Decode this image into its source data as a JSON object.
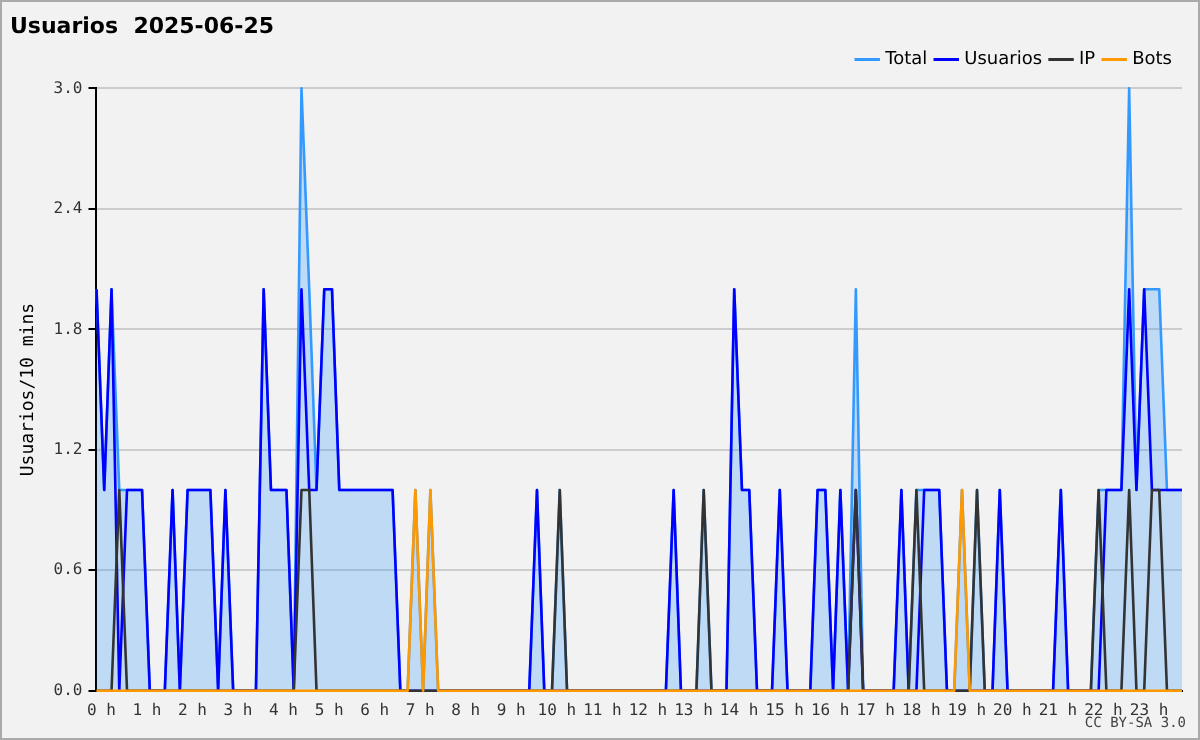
{
  "chart_data": {
    "type": "line",
    "title": "Usuarios  2025-06-25",
    "ylabel": "Usuarios/10 mins",
    "annotations": [
      "CC BY-SA 3.0"
    ],
    "xlim": [
      0,
      23.83
    ],
    "xticks": [
      {
        "value": 0,
        "label": "0 h"
      },
      {
        "value": 1,
        "label": "1 h"
      },
      {
        "value": 2,
        "label": "2 h"
      },
      {
        "value": 3,
        "label": "3 h"
      },
      {
        "value": 4,
        "label": "4 h"
      },
      {
        "value": 5,
        "label": "5 h"
      },
      {
        "value": 6,
        "label": "6 h"
      },
      {
        "value": 7,
        "label": "7 h"
      },
      {
        "value": 8,
        "label": "8 h"
      },
      {
        "value": 9,
        "label": "9 h"
      },
      {
        "value": 10,
        "label": "10 h"
      },
      {
        "value": 11,
        "label": "11 h"
      },
      {
        "value": 12,
        "label": "12 h"
      },
      {
        "value": 13,
        "label": "13 h"
      },
      {
        "value": 14,
        "label": "14 h"
      },
      {
        "value": 15,
        "label": "15 h"
      },
      {
        "value": 16,
        "label": "16 h"
      },
      {
        "value": 17,
        "label": "17 h"
      },
      {
        "value": 18,
        "label": "18 h"
      },
      {
        "value": 19,
        "label": "19 h"
      },
      {
        "value": 20,
        "label": "20 h"
      },
      {
        "value": 21,
        "label": "21 h"
      },
      {
        "value": 22,
        "label": "22 h"
      },
      {
        "value": 23,
        "label": "23 h"
      }
    ],
    "ylim": [
      0,
      3
    ],
    "yticks": [
      {
        "value": 0,
        "label": "0.0"
      },
      0.6,
      1.2,
      1.8,
      2.4,
      {
        "value": 3,
        "label": "3.0"
      }
    ],
    "grid": "y",
    "legend": "top right",
    "marker": "none",
    "line_style": "solid",
    "series": [
      {
        "name": "Total",
        "type": "area",
        "color": "#3399ff",
        "x": [
          0,
          0.17,
          0.33,
          0.5,
          0.67,
          1,
          1.17,
          1.5,
          1.67,
          1.83,
          2,
          2.5,
          2.67,
          2.83,
          3,
          3.5,
          3.67,
          3.83,
          4.17,
          4.33,
          4.5,
          4.67,
          4.83,
          5,
          5.17,
          5.33,
          6.5,
          6.67,
          6.83,
          7,
          7.17,
          7.33,
          7.5,
          9.5,
          9.67,
          9.83,
          10,
          10.17,
          10.33,
          12.5,
          12.67,
          12.83,
          13.17,
          13.33,
          13.5,
          13.83,
          14,
          14.17,
          14.33,
          14.5,
          14.83,
          15,
          15.17,
          15.67,
          15.83,
          16,
          16.17,
          16.33,
          16.5,
          16.67,
          16.83,
          17.5,
          17.67,
          17.83,
          18,
          18.17,
          18.5,
          18.67,
          18.83,
          19,
          19.17,
          19.33,
          19.5,
          19.67,
          19.83,
          20,
          21,
          21.17,
          21.33,
          21.83,
          22,
          22.17,
          22.5,
          22.67,
          22.83,
          23,
          23.17,
          23.33,
          23.5,
          23.83
        ],
        "values": [
          2,
          1,
          2,
          1,
          1,
          1,
          0,
          0,
          1,
          0,
          1,
          1,
          0,
          1,
          0,
          0,
          2,
          1,
          1,
          0,
          3,
          2,
          1,
          2,
          2,
          1,
          1,
          0,
          0,
          1,
          0,
          1,
          0,
          0,
          1,
          0,
          0,
          1,
          0,
          0,
          1,
          0,
          0,
          1,
          0,
          0,
          2,
          1,
          1,
          0,
          0,
          1,
          0,
          0,
          1,
          1,
          0,
          1,
          0,
          2,
          0,
          0,
          1,
          0,
          1,
          1,
          1,
          0,
          0,
          1,
          0,
          1,
          0,
          0,
          1,
          0,
          0,
          1,
          0,
          0,
          1,
          1,
          1,
          3,
          1,
          2,
          2,
          2,
          1,
          1
        ]
      },
      {
        "name": "Usuarios",
        "type": "line",
        "color": "#0000ff",
        "x": [
          0,
          0.17,
          0.33,
          0.5,
          0.67,
          1,
          1.17,
          1.5,
          1.67,
          1.83,
          2,
          2.5,
          2.67,
          2.83,
          3,
          3.5,
          3.67,
          3.83,
          4.17,
          4.33,
          4.5,
          4.67,
          4.83,
          5,
          5.17,
          5.33,
          6.5,
          6.67,
          9.5,
          9.67,
          9.83,
          12.5,
          12.67,
          12.83,
          13.83,
          14,
          14.17,
          14.33,
          14.5,
          14.83,
          15,
          15.17,
          15.67,
          15.83,
          16,
          16.17,
          16.33,
          16.5,
          16.67,
          16.83,
          17.5,
          17.67,
          17.83,
          18,
          18.17,
          18.5,
          18.67,
          19.67,
          19.83,
          20,
          21,
          21.17,
          21.33,
          22,
          22.17,
          22.5,
          22.67,
          22.83,
          23,
          23.17,
          23.83
        ],
        "values": [
          2,
          1,
          2,
          0,
          1,
          1,
          0,
          0,
          1,
          0,
          1,
          1,
          0,
          1,
          0,
          0,
          2,
          1,
          1,
          0,
          2,
          1,
          1,
          2,
          2,
          1,
          1,
          0,
          0,
          1,
          0,
          0,
          1,
          0,
          0,
          2,
          1,
          1,
          0,
          0,
          1,
          0,
          0,
          1,
          1,
          0,
          1,
          0,
          1,
          0,
          0,
          1,
          0,
          0,
          1,
          1,
          0,
          0,
          1,
          0,
          0,
          1,
          0,
          0,
          1,
          1,
          2,
          1,
          2,
          1,
          1
        ]
      },
      {
        "name": "IP",
        "type": "line",
        "color": "#333333",
        "x": [
          0,
          0.33,
          0.5,
          0.67,
          4.33,
          4.5,
          4.67,
          4.83,
          10,
          10.17,
          10.33,
          13.17,
          13.33,
          13.5,
          16.5,
          16.67,
          16.83,
          17.83,
          18,
          18.17,
          19.17,
          19.33,
          19.5,
          21.83,
          22,
          22.17,
          22.5,
          22.67,
          22.83,
          23,
          23.17,
          23.33,
          23.5,
          23.83
        ],
        "values": [
          0,
          0,
          1,
          0,
          0,
          1,
          1,
          0,
          0,
          1,
          0,
          0,
          1,
          0,
          0,
          1,
          0,
          0,
          1,
          0,
          0,
          1,
          0,
          0,
          1,
          0,
          0,
          1,
          0,
          0,
          1,
          1,
          0,
          0
        ]
      },
      {
        "name": "Bots",
        "type": "line",
        "color": "#ff9900",
        "x": [
          0,
          6.83,
          7,
          7.17,
          7.33,
          7.5,
          18.83,
          19,
          19.17,
          23.83
        ],
        "values": [
          0,
          0,
          1,
          0,
          1,
          0,
          0,
          1,
          0,
          0
        ]
      }
    ]
  }
}
